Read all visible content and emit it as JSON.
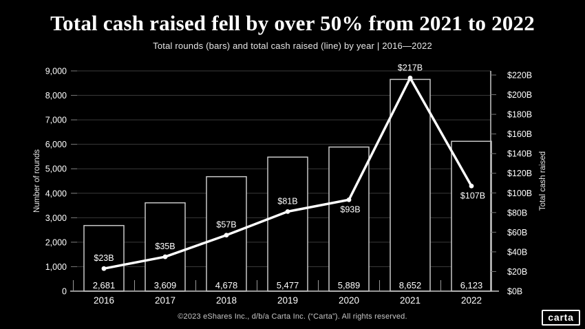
{
  "header": {
    "title": "Total cash raised fell by over 50% from 2021 to 2022",
    "subtitle": "Total rounds (bars) and total cash raised (line) by year | 2016—2022"
  },
  "chart_data": {
    "type": "combo-bar-line",
    "title": "Total cash raised fell by over 50% from 2021 to 2022",
    "subtitle": "Total rounds (bars) and total cash raised (line) by year | 2016—2022",
    "categories": [
      "2016",
      "2017",
      "2018",
      "2019",
      "2020",
      "2021",
      "2022"
    ],
    "series": [
      {
        "name": "Total rounds",
        "type": "bar",
        "axis": "left",
        "values": [
          2681,
          3609,
          4678,
          5477,
          5889,
          8652,
          6123
        ],
        "labels": [
          "2,681",
          "3,609",
          "4,678",
          "5,477",
          "5,889",
          "8,652",
          "6,123"
        ]
      },
      {
        "name": "Total cash raised",
        "type": "line",
        "axis": "right",
        "values": [
          23,
          35,
          57,
          81,
          93,
          217,
          107
        ],
        "labels": [
          "$23B",
          "$35B",
          "$57B",
          "$81B",
          "$93B",
          "$217B",
          "$107B"
        ],
        "label_position": [
          "above",
          "above",
          "above",
          "above",
          "below",
          "above",
          "below"
        ]
      }
    ],
    "left_axis": {
      "title": "Number of rounds",
      "min": 0,
      "max": 9000,
      "step": 1000,
      "tick_labels": [
        "0",
        "1,000",
        "2,000",
        "3,000",
        "4,000",
        "5,000",
        "6,000",
        "7,000",
        "8,000",
        "9,000"
      ]
    },
    "right_axis": {
      "title": "Total cash raised",
      "min": 0,
      "max": 220,
      "step": 20,
      "tick_labels": [
        "$0B",
        "$20B",
        "$40B",
        "$60B",
        "$80B",
        "$100B",
        "$120B",
        "$140B",
        "$160B",
        "$180B",
        "$200B",
        "$220B"
      ]
    },
    "grid": true,
    "legend": "none"
  },
  "footer": {
    "copyright": "©2023 eShares Inc., d/b/a Carta Inc. (“Carta”). All rights reserved.",
    "logo_text": "carta"
  },
  "colors": {
    "background": "#000000",
    "bar_fill": "#000000",
    "bar_stroke": "#c9c9c9",
    "line": "#ffffff",
    "grid": "#3a3a3a",
    "axis_line": "#c9c9c9",
    "tick": "#777777",
    "mid_tick": "#9a9a9a",
    "text": "#ffffff",
    "axis_title_text": "#e8e8e8",
    "muted_text": "#c9c9c9"
  }
}
